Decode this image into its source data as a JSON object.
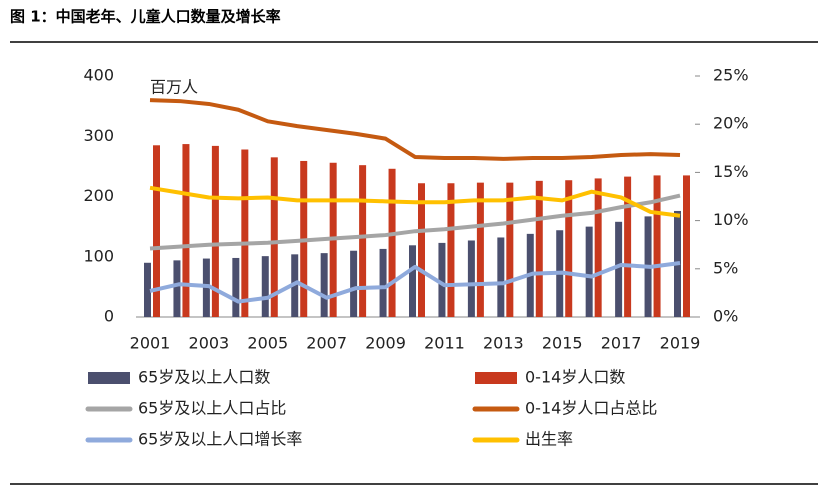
{
  "chart_data": {
    "type": "bar-line",
    "title": "图 1：中国老年、儿童人口数量及增长率",
    "y_label": "百万人",
    "categories": [
      "2001",
      null,
      "2003",
      null,
      "2005",
      null,
      "2007",
      null,
      "2009",
      null,
      "2011",
      null,
      "2013",
      null,
      "2015",
      null,
      "2017",
      null,
      "2019"
    ],
    "ylim": [
      0,
      400
    ],
    "yticks": [
      0,
      100,
      200,
      300,
      400
    ],
    "y2lim": [
      0,
      25
    ],
    "y2ticks": [
      {
        "value": 0,
        "label": "0%"
      },
      {
        "value": 5,
        "label": "5%"
      },
      {
        "value": 10,
        "label": "10%"
      },
      {
        "value": 15,
        "label": "15%"
      },
      {
        "value": 20,
        "label": "20%"
      },
      {
        "value": 25,
        "label": "25%"
      }
    ],
    "series": [
      {
        "name": "65岁及以上人口数",
        "type": "bar",
        "color": "#4b4f6e",
        "values": [
          90,
          94,
          97,
          98,
          101,
          104,
          106,
          110,
          113,
          119,
          123,
          127,
          132,
          138,
          144,
          150,
          158,
          167,
          176
        ]
      },
      {
        "name": "0-14岁人口数",
        "type": "bar",
        "color": "#c8391e",
        "values": [
          285,
          287,
          284,
          278,
          265,
          259,
          256,
          252,
          246,
          222,
          222,
          223,
          223,
          226,
          227,
          230,
          233,
          235,
          235
        ]
      },
      {
        "name": "65岁及以上人口占比",
        "type": "line",
        "axis": "y2",
        "color": "#a5a5a5",
        "values": [
          7.1,
          7.3,
          7.5,
          7.6,
          7.7,
          7.9,
          8.1,
          8.3,
          8.5,
          8.9,
          9.1,
          9.4,
          9.7,
          10.1,
          10.5,
          10.8,
          11.4,
          11.9,
          12.6
        ]
      },
      {
        "name": "0-14岁人口占总比",
        "type": "line",
        "axis": "y2",
        "color": "#c55a11",
        "values": [
          22.5,
          22.4,
          22.1,
          21.5,
          20.3,
          19.8,
          19.4,
          19.0,
          18.5,
          16.6,
          16.5,
          16.5,
          16.4,
          16.5,
          16.5,
          16.6,
          16.8,
          16.9,
          16.8
        ]
      },
      {
        "name": "65岁及以上人口增长率",
        "type": "line",
        "axis": "y2",
        "color": "#8faadc",
        "values": [
          2.7,
          3.4,
          3.2,
          1.6,
          2.0,
          3.6,
          2.0,
          3.0,
          3.1,
          5.2,
          3.3,
          3.4,
          3.5,
          4.5,
          4.6,
          4.2,
          5.4,
          5.2,
          5.6
        ]
      },
      {
        "name": "出生率",
        "type": "line",
        "axis": "y2",
        "color": "#ffc000",
        "values": [
          13.4,
          12.9,
          12.4,
          12.3,
          12.4,
          12.1,
          12.1,
          12.1,
          12.0,
          11.9,
          11.9,
          12.1,
          12.1,
          12.4,
          12.1,
          13.0,
          12.4,
          10.9,
          10.5
        ]
      }
    ]
  }
}
